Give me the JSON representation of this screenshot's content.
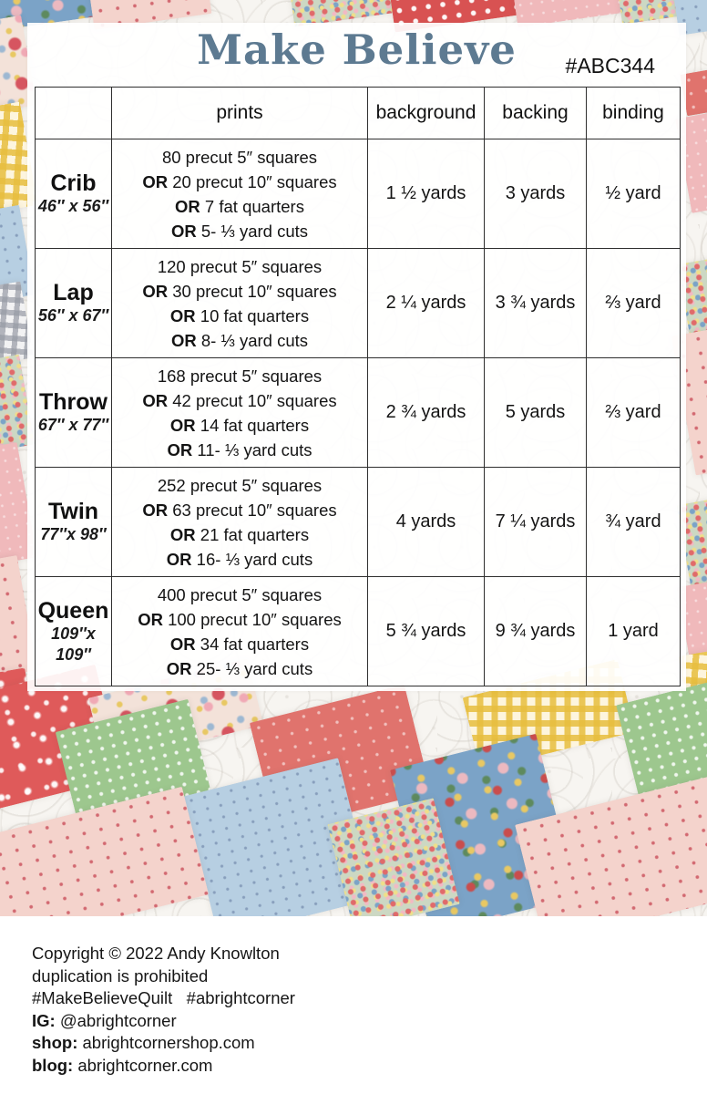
{
  "header": {
    "title": "Make Believe",
    "pattern_number": "#ABC344"
  },
  "table": {
    "columns": [
      "",
      "prints",
      "background",
      "backing",
      "binding"
    ],
    "rows": [
      {
        "size": "Crib",
        "dimensions": "46″ x 56″",
        "prints": [
          "80 precut 5″ squares",
          "OR 20 precut 10″ squares",
          "OR 7 fat quarters",
          "OR 5- ⅓ yard cuts"
        ],
        "background": "1 ½ yards",
        "backing": "3 yards",
        "binding": "½ yard"
      },
      {
        "size": "Lap",
        "dimensions": "56″ x 67″",
        "prints": [
          "120 precut 5″ squares",
          "OR 30 precut 10″ squares",
          "OR 10 fat quarters",
          "OR 8- ⅓ yard cuts"
        ],
        "background": "2 ¼ yards",
        "backing": "3 ¾ yards",
        "binding": "⅔ yard"
      },
      {
        "size": "Throw",
        "dimensions": "67″ x 77″",
        "prints": [
          "168 precut 5″ squares",
          "OR 42 precut 10″ squares",
          "OR 14 fat quarters",
          "OR 11- ⅓ yard cuts"
        ],
        "background": "2 ¾ yards",
        "backing": "5 yards",
        "binding": "⅔ yard"
      },
      {
        "size": "Twin",
        "dimensions": "77″x 98″",
        "prints": [
          "252 precut 5″ squares",
          "OR 63 precut 10″ squares",
          "OR 21 fat quarters",
          "OR 16- ⅓ yard cuts"
        ],
        "background": "4 yards",
        "backing": "7 ¼ yards",
        "binding": "¾ yard"
      },
      {
        "size": "Queen",
        "dimensions": "109″x 109″",
        "prints": [
          "400 precut 5″ squares",
          "OR 100 precut 10″ squares",
          "OR 34 fat quarters",
          "OR 25- ⅓ yard cuts"
        ],
        "background": "5 ¾ yards",
        "backing": "9 ¾ yards",
        "binding": "1 yard"
      }
    ]
  },
  "footer": {
    "lines": [
      "Copyright © 2022 Andy Knowlton",
      "duplication is prohibited",
      "#MakeBelieveQuilt   #abrightcorner"
    ],
    "contacts": [
      {
        "label": "IG:",
        "value": "@abrightcorner"
      },
      {
        "label": "shop:",
        "value": "abrightcornershop.com"
      },
      {
        "label": "blog:",
        "value": "abrightcorner.com"
      }
    ]
  },
  "colors": {
    "title": "#5d7a91",
    "table_border": "#2e2e2e",
    "fabric_red_daisy": "#df5a5a",
    "fabric_coral": "#e0736d",
    "fabric_green_dot": "#9dc78e",
    "fabric_blue_sprig": "#b7cfe2",
    "fabric_blue_floral": "#7ba3c7",
    "fabric_pink_sprig": "#f4d3cc",
    "fabric_yellow_gingham": "#e7be3e"
  }
}
